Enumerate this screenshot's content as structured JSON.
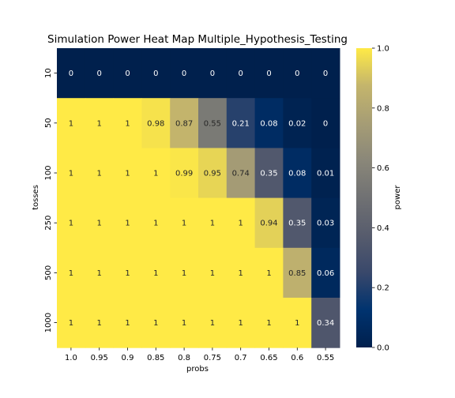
{
  "chart_data": {
    "type": "heatmap",
    "title": "Simulation Power Heat Map Multiple_Hypothesis_Testing",
    "xlabel": "probs",
    "ylabel": "tosses",
    "x": [
      "1.0",
      "0.95",
      "0.9",
      "0.85",
      "0.8",
      "0.75",
      "0.7",
      "0.65",
      "0.6",
      "0.55"
    ],
    "y": [
      "10",
      "50",
      "100",
      "250",
      "500",
      "1000"
    ],
    "values": [
      [
        0,
        0,
        0,
        0,
        0,
        0,
        0,
        0,
        0,
        0
      ],
      [
        1,
        1,
        1,
        0.98,
        0.87,
        0.55,
        0.21,
        0.08,
        0.02,
        0
      ],
      [
        1,
        1,
        1,
        1,
        0.99,
        0.95,
        0.74,
        0.35,
        0.08,
        0.01
      ],
      [
        1,
        1,
        1,
        1,
        1,
        1,
        1,
        0.94,
        0.35,
        0.03
      ],
      [
        1,
        1,
        1,
        1,
        1,
        1,
        1,
        1,
        0.85,
        0.06
      ],
      [
        1,
        1,
        1,
        1,
        1,
        1,
        1,
        1,
        1,
        0.34
      ]
    ],
    "colormap": "cividis",
    "colorbar": {
      "label": "power",
      "range": [
        0.0,
        1.0
      ],
      "ticks": [
        "0.0",
        "0.2",
        "0.4",
        "0.6",
        "0.8",
        "1.0"
      ]
    }
  }
}
